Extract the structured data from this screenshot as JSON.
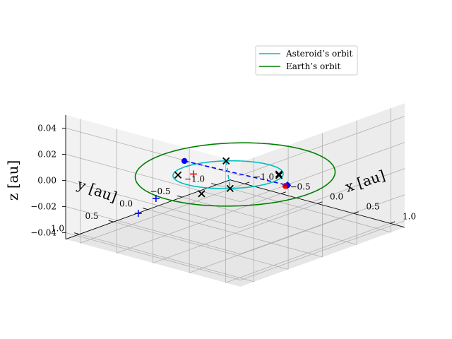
{
  "chart_data": {
    "type": "line3d",
    "title": "",
    "xlabel": "x [au]",
    "ylabel": "y [au]",
    "zlabel": "z [au]",
    "xlim": [
      -1.2,
      1.2
    ],
    "ylim": [
      -1.2,
      1.2
    ],
    "zlim": [
      -0.045,
      0.05
    ],
    "xticks": [
      -1.0,
      -0.5,
      0.0,
      0.5,
      1.0
    ],
    "xtick_labels": [
      "−1.0",
      "−0.5",
      "0.0",
      "0.5",
      "1.0"
    ],
    "yticks": [
      -1.0,
      -0.5,
      0.0,
      0.5,
      1.0
    ],
    "ytick_labels": [
      "−1.0",
      "−0.5",
      "0.0",
      "0.5",
      "1.0"
    ],
    "zticks": [
      -0.04,
      -0.02,
      0.0,
      0.02,
      0.04
    ],
    "ztick_labels": [
      "−0.04",
      "−0.02",
      "0.00",
      "0.02",
      "0.04"
    ],
    "grid": true,
    "view": {
      "elev": 20,
      "azim": -135
    },
    "legend": {
      "placement": "top-right",
      "entries": [
        {
          "label": "Asteroid’s orbit",
          "color": "#00bfbf"
        },
        {
          "label": "Earth’s orbit",
          "color": "#008000"
        }
      ]
    },
    "series": [
      {
        "name": "Asteroid’s orbit",
        "color": "#00bfbf",
        "kind": "ellipse",
        "center": [
          -0.05,
          0.05,
          0.0
        ],
        "u": [
          0.82,
          0.9,
          0.04
        ],
        "v": [
          0.4,
          -0.38,
          0.0
        ]
      },
      {
        "name": "Earth’s orbit",
        "color": "#008000",
        "kind": "circle",
        "center": [
          0.0,
          0.0,
          0.0
        ],
        "radius": 1.0
      }
    ],
    "segments": [
      {
        "from": [
          -0.18,
          0.55,
          0.018
        ],
        "to": [
          0.36,
          -0.38,
          -0.01
        ],
        "color": "#0000ff",
        "dash": true
      },
      {
        "from": [
          0.77,
          0.95,
          0.04
        ],
        "to": [
          -0.87,
          -0.85,
          -0.04
        ],
        "color": "#00bfbf",
        "dash": true
      }
    ],
    "markers": [
      {
        "kind": "dot",
        "pos": [
          -0.18,
          0.55,
          0.018
        ],
        "color": "#0000ff"
      },
      {
        "kind": "dot",
        "pos": [
          0.36,
          -0.38,
          -0.01
        ],
        "color": "#0000ff"
      },
      {
        "kind": "dot",
        "pos": [
          0.36,
          -0.35,
          -0.01
        ],
        "color": "#ff0000"
      },
      {
        "kind": "x",
        "pos": [
          0.77,
          0.95,
          0.04
        ],
        "color": "#000000"
      },
      {
        "kind": "x",
        "pos": [
          0.65,
          0.05,
          0.01
        ],
        "color": "#000000"
      },
      {
        "kind": "x",
        "pos": [
          0.62,
          0.02,
          0.01
        ],
        "color": "#000000"
      },
      {
        "kind": "x",
        "pos": [
          -0.72,
          0.07,
          -0.01
        ],
        "color": "#000000"
      },
      {
        "kind": "x",
        "pos": [
          -0.87,
          -0.85,
          -0.04
        ],
        "color": "#000000"
      },
      {
        "kind": "x",
        "pos": [
          -0.98,
          -0.55,
          -0.04
        ],
        "color": "#000000"
      },
      {
        "kind": "plus",
        "pos": [
          -0.1,
          1.05,
          0.0
        ],
        "color": "#0000ff"
      },
      {
        "kind": "plus",
        "pos": [
          -1.05,
          0.3,
          -0.04
        ],
        "color": "#0000ff"
      },
      {
        "kind": "plus",
        "pos": [
          -0.62,
          -0.05,
          -0.01
        ],
        "color": "#ff0000"
      },
      {
        "kind": "plus",
        "pos": [
          0.36,
          -0.38,
          -0.01
        ],
        "color": "#0000ff"
      }
    ]
  }
}
